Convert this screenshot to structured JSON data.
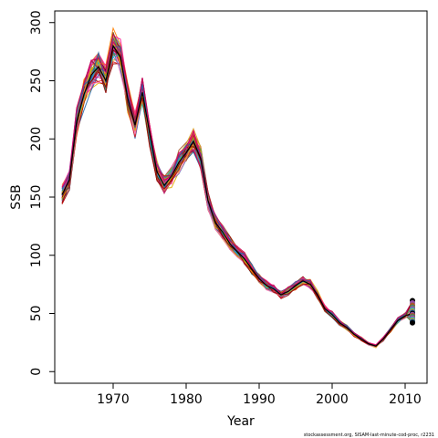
{
  "chart_data": {
    "type": "line",
    "xlabel": "Year",
    "ylabel": "SSB",
    "xlim": [
      1962,
      2013
    ],
    "ylim": [
      -10,
      310
    ],
    "xticks": [
      1970,
      1980,
      1990,
      2000,
      2010
    ],
    "yticks": [
      0,
      50,
      100,
      150,
      200,
      250,
      300
    ],
    "grid": false,
    "footnote": "stockassessment.org, SISAM-last-minute-cod-proc, r2231",
    "x": [
      1963,
      1964,
      1965,
      1966,
      1967,
      1968,
      1969,
      1970,
      1971,
      1972,
      1973,
      1974,
      1975,
      1976,
      1977,
      1978,
      1979,
      1980,
      1981,
      1982,
      1983,
      1984,
      1985,
      1986,
      1987,
      1988,
      1989,
      1990,
      1991,
      1992,
      1993,
      1994,
      1995,
      1996,
      1997,
      1998,
      1999,
      2000,
      2001,
      2002,
      2003,
      2004,
      2005,
      2006,
      2007,
      2008,
      2009,
      2010,
      2011
    ],
    "central_series": {
      "name": "SSB",
      "values": [
        152,
        165,
        215,
        238,
        255,
        262,
        250,
        280,
        270,
        235,
        212,
        240,
        205,
        172,
        160,
        168,
        180,
        188,
        198,
        183,
        147,
        128,
        120,
        110,
        103,
        97,
        88,
        80,
        74,
        71,
        66,
        69,
        74,
        78,
        75,
        66,
        54,
        49,
        42,
        38,
        32,
        28,
        24,
        22,
        28,
        36,
        44,
        48,
        50
      ]
    },
    "n_series": 48,
    "palette": [
      "#000000",
      "#e41a1c",
      "#ff7f00",
      "#984ea3",
      "#4daf4a",
      "#377eb8",
      "#a65628",
      "#f781bf",
      "#d9a400",
      "#1b9e77",
      "#c51b7d",
      "#7570b3",
      "#e7298a",
      "#66a61e",
      "#e6ab02",
      "#00bcd4",
      "#8b0000",
      "#ff1493",
      "#daa520",
      "#6a3d9a",
      "#b2182b",
      "#2166ac",
      "#cc0066",
      "#990000"
    ],
    "endpoint_values": [
      61,
      59,
      57,
      55,
      54,
      53,
      52,
      51,
      50,
      49,
      48,
      47,
      46,
      45,
      44,
      43,
      42
    ]
  }
}
